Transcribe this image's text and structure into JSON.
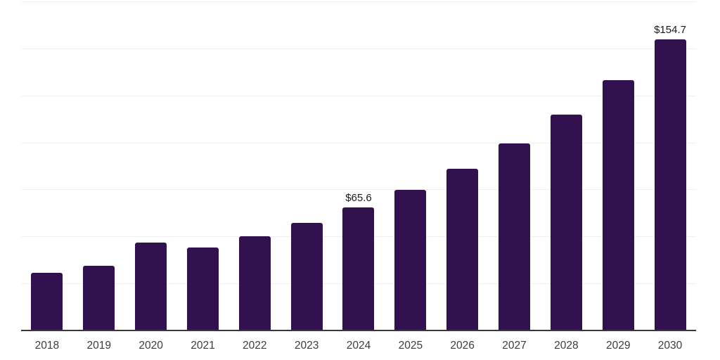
{
  "chart_data": {
    "type": "bar",
    "title": "",
    "xlabel": "",
    "ylabel": "",
    "categories": [
      "2018",
      "2019",
      "2020",
      "2021",
      "2022",
      "2023",
      "2024",
      "2025",
      "2026",
      "2027",
      "2028",
      "2029",
      "2030"
    ],
    "values": [
      30.5,
      34.5,
      46.6,
      44.1,
      50.0,
      57.2,
      65.6,
      74.8,
      86.0,
      99.4,
      114.9,
      133.2,
      154.7
    ],
    "point_labels": [
      "",
      "",
      "",
      "",
      "",
      "",
      "$65.6",
      "",
      "",
      "",
      "",
      "",
      "$154.7"
    ],
    "ylim": [
      0,
      175
    ],
    "gridline_step": 25,
    "grid": true,
    "y_tick_labels_shown": false,
    "legend_position": "none",
    "bar_color": "#31124e",
    "gridline_color": "#f0f0f2",
    "axis_line_color": "#383838",
    "label_color": "#1a1a1a",
    "tick_label_color": "#3d3d3d"
  }
}
